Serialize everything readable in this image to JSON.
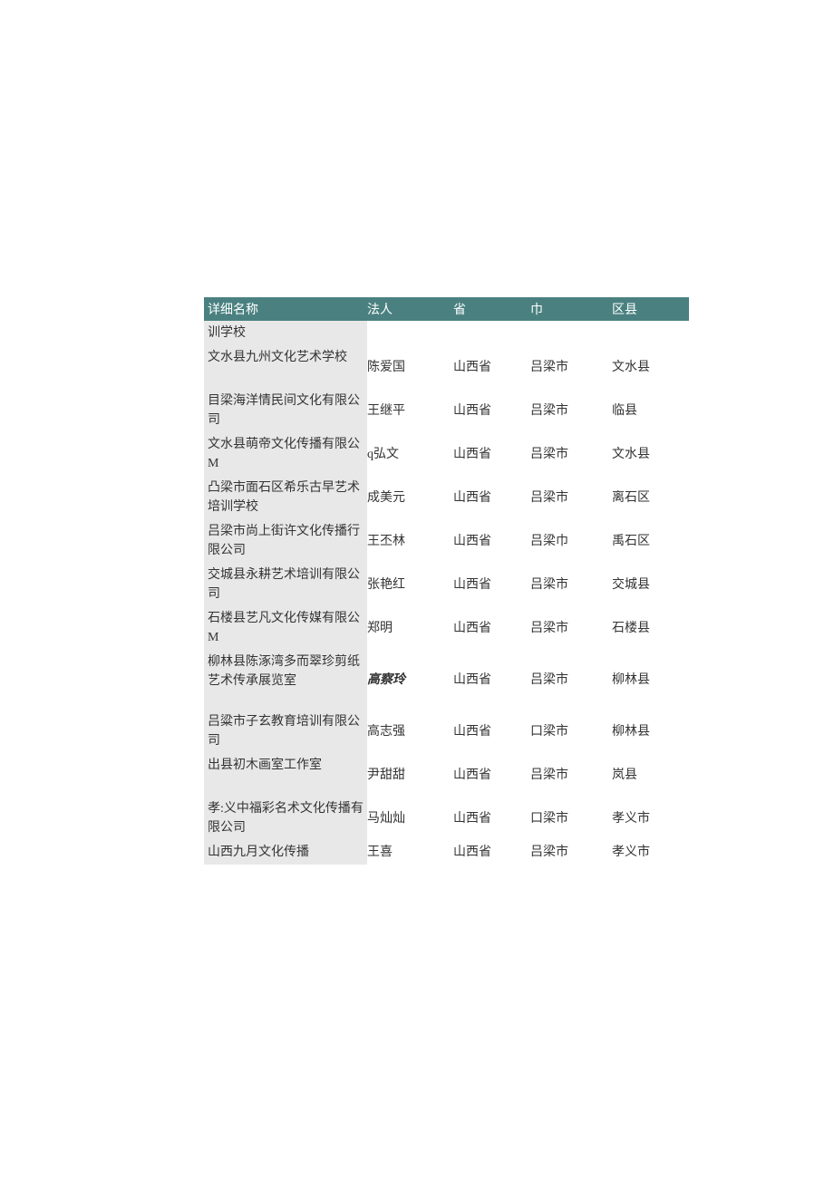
{
  "colors": {
    "header_bg": "#4a8180",
    "header_text": "#ffffff",
    "name_bg": "#e8e8e8",
    "text": "#333333",
    "page_bg": "#ffffff"
  },
  "headers": {
    "name": "详细名称",
    "person": "法人",
    "province": "省",
    "city": "巾",
    "district": "区县"
  },
  "rows": [
    {
      "name": "训学校",
      "person": "",
      "province": "",
      "city": "",
      "district": "",
      "style": "short"
    },
    {
      "name": "文水县九州文化艺术学校",
      "person": "陈爱国",
      "province": "山西省",
      "city": "吕梁市",
      "district": "文水县",
      "style": "tall"
    },
    {
      "name": "目梁海洋情民间文化有限公司",
      "person": "王继平",
      "province": "山西省",
      "city": "吕梁市",
      "district": "临县",
      "style": "tall"
    },
    {
      "name": "文水县萌帝文化传播有限公M",
      "person": "q弘文",
      "province": "山西省",
      "city": "吕梁市",
      "district": "文水县",
      "style": "tall"
    },
    {
      "name": "凸梁市面石区希乐古早艺术培训学校",
      "person": "成美元",
      "province": "山西省",
      "city": "吕梁市",
      "district": "离石区",
      "style": "tall"
    },
    {
      "name": "吕梁市尚上街许文化传播行限公司",
      "person": "王丕林",
      "province": "山西省",
      "city": "吕梁巾",
      "district": "禹石区",
      "style": "tall"
    },
    {
      "name": "交城县永耕艺术培训有限公司",
      "person": "张艳红",
      "province": "山西省",
      "city": "吕梁市",
      "district": "交城县",
      "style": "tall"
    },
    {
      "name": "石楼县艺凡文化传媒有限公M",
      "person": "郑明",
      "province": "山西省",
      "city": "吕梁市",
      "district": "石楼县",
      "style": "tall"
    },
    {
      "name": "柳林县陈涿湾多而翠珍剪纸艺术传承展览室",
      "person": "高察玲",
      "province": "山西省",
      "city": "吕梁市",
      "district": "柳林县",
      "style": "taller",
      "person_style": "italic"
    },
    {
      "name": "吕粱市子玄教育培训有限公司",
      "person": "高志强",
      "province": "山西省",
      "city": "口梁市",
      "district": "柳林县",
      "style": "tall"
    },
    {
      "name": "出县初木画室工作室",
      "person": "尹甜甜",
      "province": "山西省",
      "city": "吕梁市",
      "district": "岚县",
      "style": "tall"
    },
    {
      "name": "孝:义中福彩名术文化传播有限公司",
      "person": "马灿灿",
      "province": "山西省",
      "city": "口梁市",
      "district": "孝义市",
      "style": "tall"
    },
    {
      "name": "山西九月文化传播",
      "person": "王喜",
      "province": "山西省",
      "city": "吕梁市",
      "district": "孝义市",
      "style": "short"
    }
  ]
}
